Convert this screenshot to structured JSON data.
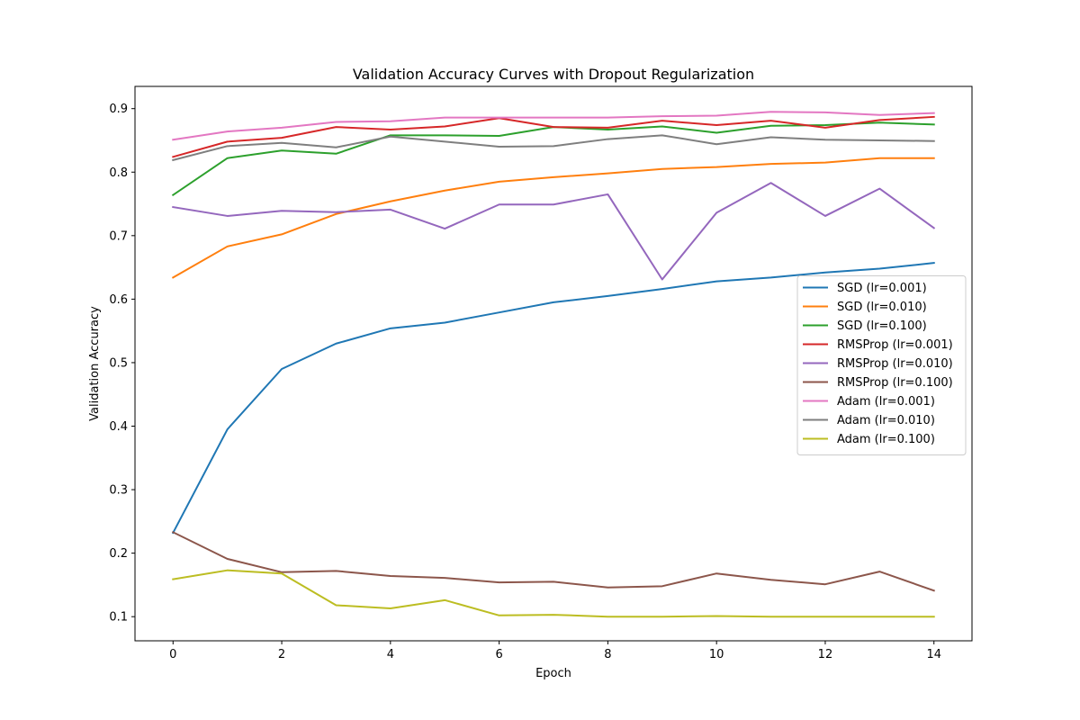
{
  "chart_data": {
    "type": "line",
    "title": "Validation Accuracy Curves with Dropout Regularization",
    "xlabel": "Epoch",
    "ylabel": "Validation Accuracy",
    "xlim": [
      -0.7,
      14.7
    ],
    "ylim": [
      0.062,
      0.935
    ],
    "xticks": [
      0,
      2,
      4,
      6,
      8,
      10,
      12,
      14
    ],
    "yticks": [
      0.1,
      0.2,
      0.3,
      0.4,
      0.5,
      0.6,
      0.7,
      0.8,
      0.9
    ],
    "x": [
      0,
      1,
      2,
      3,
      4,
      5,
      6,
      7,
      8,
      9,
      10,
      11,
      12,
      13,
      14
    ],
    "grid": false,
    "legend_position": "center-right",
    "series": [
      {
        "name": "SGD (lr=0.001)",
        "color": "#1f77b4",
        "values": [
          0.232,
          0.395,
          0.49,
          0.53,
          0.554,
          0.563,
          0.579,
          0.595,
          0.605,
          0.616,
          0.628,
          0.634,
          0.642,
          0.648,
          0.657
        ]
      },
      {
        "name": "SGD (lr=0.010)",
        "color": "#ff7f0e",
        "values": [
          0.634,
          0.683,
          0.702,
          0.734,
          0.754,
          0.771,
          0.785,
          0.792,
          0.798,
          0.805,
          0.808,
          0.813,
          0.815,
          0.822,
          0.822
        ]
      },
      {
        "name": "SGD (lr=0.100)",
        "color": "#2ca02c",
        "values": [
          0.764,
          0.822,
          0.834,
          0.829,
          0.858,
          0.858,
          0.857,
          0.871,
          0.867,
          0.872,
          0.862,
          0.873,
          0.874,
          0.878,
          0.875
        ]
      },
      {
        "name": "RMSProp (lr=0.001)",
        "color": "#d62728",
        "values": [
          0.824,
          0.848,
          0.854,
          0.871,
          0.867,
          0.872,
          0.885,
          0.871,
          0.87,
          0.881,
          0.874,
          0.881,
          0.87,
          0.882,
          0.887
        ]
      },
      {
        "name": "RMSProp (lr=0.010)",
        "color": "#9467bd",
        "values": [
          0.745,
          0.731,
          0.739,
          0.737,
          0.741,
          0.711,
          0.749,
          0.749,
          0.765,
          0.631,
          0.736,
          0.783,
          0.731,
          0.774,
          0.712
        ]
      },
      {
        "name": "RMSProp (lr=0.100)",
        "color": "#8c564b",
        "values": [
          0.233,
          0.191,
          0.17,
          0.172,
          0.164,
          0.161,
          0.154,
          0.155,
          0.146,
          0.148,
          0.168,
          0.158,
          0.151,
          0.171,
          0.141
        ]
      },
      {
        "name": "Adam (lr=0.001)",
        "color": "#e377c2",
        "values": [
          0.851,
          0.864,
          0.87,
          0.879,
          0.88,
          0.886,
          0.886,
          0.886,
          0.886,
          0.888,
          0.889,
          0.895,
          0.894,
          0.89,
          0.893
        ]
      },
      {
        "name": "Adam (lr=0.010)",
        "color": "#7f7f7f",
        "values": [
          0.819,
          0.841,
          0.846,
          0.839,
          0.856,
          0.848,
          0.84,
          0.841,
          0.852,
          0.858,
          0.844,
          0.855,
          0.851,
          0.85,
          0.849
        ]
      },
      {
        "name": "Adam (lr=0.100)",
        "color": "#bcbd22",
        "values": [
          0.159,
          0.173,
          0.168,
          0.118,
          0.113,
          0.126,
          0.102,
          0.103,
          0.1,
          0.1,
          0.101,
          0.1,
          0.1,
          0.1,
          0.1
        ]
      }
    ]
  }
}
